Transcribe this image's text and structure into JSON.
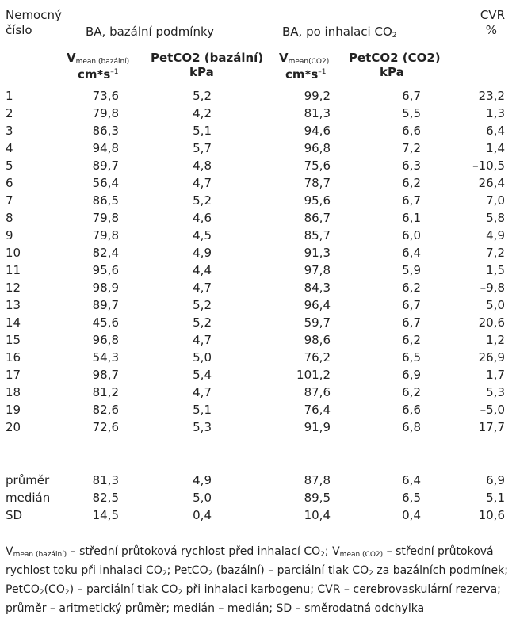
{
  "header": {
    "col_id_line1": "Nemocný",
    "col_id_line2": "číslo",
    "group_basal": "BA, bazální podmínky",
    "group_co2_prefix": "BA, po inhalaci CO",
    "group_co2_sub": "2",
    "col_cvr_line1": "CVR",
    "col_cvr_line2": "%",
    "sub_vmean_basal_main": "V",
    "sub_vmean_basal_sub": "mean (bazální)",
    "sub_vmean_basal_unit": "cm*s",
    "sub_vmean_basal_unit_sup": "–1",
    "sub_pet_basal_line1": "PetCO2 (bazální)",
    "sub_pet_basal_line2": "kPa",
    "sub_vmean_co2_main": "V",
    "sub_vmean_co2_sub": "mean(CO2)",
    "sub_vmean_co2_unit": "cm*s",
    "sub_vmean_co2_unit_sup": "–1",
    "sub_pet_co2_line1": "PetCO2 (CO2)",
    "sub_pet_co2_line2": "kPa"
  },
  "rows": [
    {
      "id": "1",
      "v1": "73,6",
      "p1": "5,2",
      "v2": "99,2",
      "p2": "6,7",
      "cvr": "23,2"
    },
    {
      "id": "2",
      "v1": "79,8",
      "p1": "4,2",
      "v2": "81,3",
      "p2": "5,5",
      "cvr": "1,3"
    },
    {
      "id": "3",
      "v1": "86,3",
      "p1": "5,1",
      "v2": "94,6",
      "p2": "6,6",
      "cvr": "6,4"
    },
    {
      "id": "4",
      "v1": "94,8",
      "p1": "5,7",
      "v2": "96,8",
      "p2": "7,2",
      "cvr": "1,4"
    },
    {
      "id": "5",
      "v1": "89,7",
      "p1": "4,8",
      "v2": "75,6",
      "p2": "6,3",
      "cvr": "–10,5"
    },
    {
      "id": "6",
      "v1": "56,4",
      "p1": "4,7",
      "v2": "78,7",
      "p2": "6,2",
      "cvr": "26,4"
    },
    {
      "id": "7",
      "v1": "86,5",
      "p1": "5,2",
      "v2": "95,6",
      "p2": "6,7",
      "cvr": "7,0"
    },
    {
      "id": "8",
      "v1": "79,8",
      "p1": "4,6",
      "v2": "86,7",
      "p2": "6,1",
      "cvr": "5,8"
    },
    {
      "id": "9",
      "v1": "79,8",
      "p1": "4,5",
      "v2": "85,7",
      "p2": "6,0",
      "cvr": "4,9"
    },
    {
      "id": "10",
      "v1": "82,4",
      "p1": "4,9",
      "v2": "91,3",
      "p2": "6,4",
      "cvr": "7,2"
    },
    {
      "id": "11",
      "v1": "95,6",
      "p1": "4,4",
      "v2": "97,8",
      "p2": "5,9",
      "cvr": "1,5"
    },
    {
      "id": "12",
      "v1": "98,9",
      "p1": "4,7",
      "v2": "84,3",
      "p2": "6,2",
      "cvr": "–9,8"
    },
    {
      "id": "13",
      "v1": "89,7",
      "p1": "5,2",
      "v2": "96,4",
      "p2": "6,7",
      "cvr": "5,0"
    },
    {
      "id": "14",
      "v1": "45,6",
      "p1": "5,2",
      "v2": "59,7",
      "p2": "6,7",
      "cvr": "20,6"
    },
    {
      "id": "15",
      "v1": "96,8",
      "p1": "4,7",
      "v2": "98,6",
      "p2": "6,2",
      "cvr": "1,2"
    },
    {
      "id": "16",
      "v1": "54,3",
      "p1": "5,0",
      "v2": "76,2",
      "p2": "6,5",
      "cvr": "26,9"
    },
    {
      "id": "17",
      "v1": "98,7",
      "p1": "5,4",
      "v2": "101,2",
      "p2": "6,9",
      "cvr": "1,7"
    },
    {
      "id": "18",
      "v1": "81,2",
      "p1": "4,7",
      "v2": "87,6",
      "p2": "6,2",
      "cvr": "5,3"
    },
    {
      "id": "19",
      "v1": "82,6",
      "p1": "5,1",
      "v2": "76,4",
      "p2": "6,6",
      "cvr": "–5,0"
    },
    {
      "id": "20",
      "v1": "72,6",
      "p1": "5,3",
      "v2": "91,9",
      "p2": "6,8",
      "cvr": "17,7"
    }
  ],
  "summary": [
    {
      "id": "průměr",
      "v1": "81,3",
      "p1": "4,9",
      "v2": "87,8",
      "p2": "6,4",
      "cvr": "6,9"
    },
    {
      "id": "medián",
      "v1": "82,5",
      "p1": "5,0",
      "v2": "89,5",
      "p2": "6,5",
      "cvr": "5,1"
    },
    {
      "id": "SD",
      "v1": "14,5",
      "p1": "0,4",
      "v2": "10,4",
      "p2": "0,4",
      "cvr": "10,6"
    }
  ],
  "footnote": {
    "l1_a": "V",
    "l1_a_sub": "mean (bazální)",
    "l1_b": " – střední průtoková rychlost před inhalací CO",
    "l1_b_sub": "2",
    "l1_c": "; V",
    "l1_c_sub": "mean (CO2)",
    "l1_d": " – střední průtoková",
    "l2_a": "rychlost toku při inhalaci CO",
    "l2_a_sub": "2",
    "l2_b": "; PetCO",
    "l2_b_sub": "2",
    "l2_c": " (bazální) – parciální tlak CO",
    "l2_c_sub": "2",
    "l2_d": " za bazálních podmínek;",
    "l3_a": "PetCO",
    "l3_a_sub": "2",
    "l3_b": "(CO",
    "l3_b_sub": "2",
    "l3_c": ") – parciální tlak CO",
    "l3_c_sub": "2",
    "l3_d": " při inhalaci karbogenu; CVR – cerebrovaskulární rezerva;",
    "l4": "průměr – aritmetický průměr; medián – medián; SD – směrodatná odchylka"
  }
}
